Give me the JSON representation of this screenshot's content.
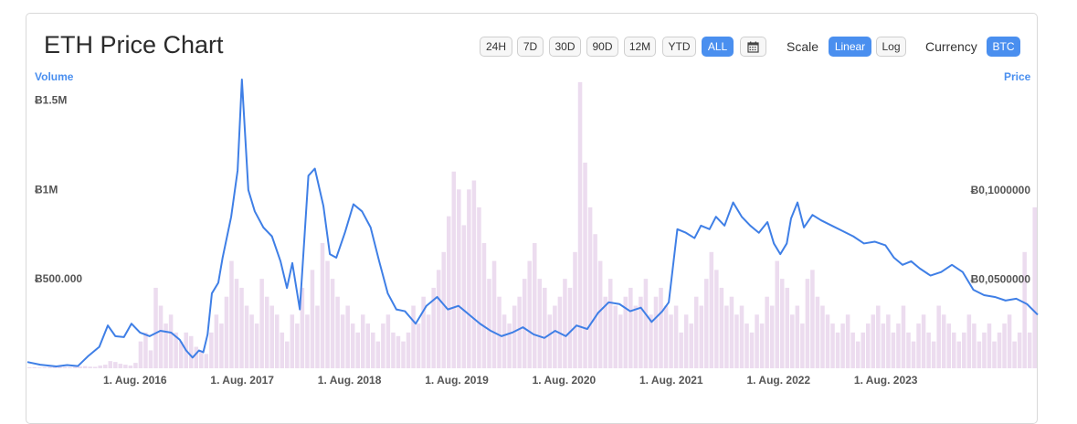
{
  "header": {
    "title": "ETH Price Chart"
  },
  "range_buttons": [
    {
      "label": "24H",
      "active": false
    },
    {
      "label": "7D",
      "active": false
    },
    {
      "label": "30D",
      "active": false
    },
    {
      "label": "90D",
      "active": false
    },
    {
      "label": "12M",
      "active": false
    },
    {
      "label": "YTD",
      "active": false
    },
    {
      "label": "ALL",
      "active": true
    }
  ],
  "calendar_icon": "calendar-icon",
  "scale": {
    "label": "Scale",
    "options": [
      {
        "label": "Linear",
        "active": true
      },
      {
        "label": "Log",
        "active": false
      }
    ]
  },
  "currency": {
    "label": "Currency",
    "value": "BTC"
  },
  "colors": {
    "accent": "#4a8fef",
    "price_line": "#3f7fe6",
    "volume_bar": "#ecdcef"
  },
  "chart_data": {
    "type": "line",
    "volume_axis_title": "Volume",
    "price_axis_title": "Price",
    "x_labels": [
      "1. Aug. 2016",
      "1. Aug. 2017",
      "1. Aug. 2018",
      "1. Aug. 2019",
      "1. Aug. 2020",
      "1. Aug. 2021",
      "1. Aug. 2022",
      "1. Aug. 2023"
    ],
    "x_range": [
      2015.58,
      2025.0
    ],
    "left_axis": {
      "name": "Volume",
      "ticks": [
        "Ƀ500.000",
        "Ƀ1M",
        "Ƀ1.5M"
      ],
      "tick_values": [
        500000,
        1000000,
        1500000
      ],
      "range": [
        0,
        1625000
      ]
    },
    "right_axis": {
      "name": "Price",
      "ticks": [
        "Ƀ0,0500000",
        "Ƀ0,1000000"
      ],
      "tick_values": [
        0.05,
        0.1
      ],
      "range": [
        0,
        0.163
      ]
    },
    "price_series": {
      "name": "Price",
      "points": [
        [
          2015.58,
          0.0035
        ],
        [
          2015.7,
          0.002
        ],
        [
          2015.85,
          0.001
        ],
        [
          2015.95,
          0.0018
        ],
        [
          2016.05,
          0.0012
        ],
        [
          2016.15,
          0.007
        ],
        [
          2016.25,
          0.012
        ],
        [
          2016.33,
          0.024
        ],
        [
          2016.4,
          0.018
        ],
        [
          2016.48,
          0.0175
        ],
        [
          2016.55,
          0.025
        ],
        [
          2016.63,
          0.02
        ],
        [
          2016.72,
          0.018
        ],
        [
          2016.82,
          0.021
        ],
        [
          2016.92,
          0.02
        ],
        [
          2017.0,
          0.016
        ],
        [
          2017.06,
          0.01
        ],
        [
          2017.12,
          0.006
        ],
        [
          2017.18,
          0.01
        ],
        [
          2017.22,
          0.009
        ],
        [
          2017.26,
          0.019
        ],
        [
          2017.3,
          0.042
        ],
        [
          2017.36,
          0.048
        ],
        [
          2017.4,
          0.062
        ],
        [
          2017.48,
          0.085
        ],
        [
          2017.54,
          0.111
        ],
        [
          2017.58,
          0.162
        ],
        [
          2017.64,
          0.1
        ],
        [
          2017.7,
          0.088
        ],
        [
          2017.78,
          0.079
        ],
        [
          2017.86,
          0.074
        ],
        [
          2017.94,
          0.06
        ],
        [
          2018.0,
          0.045
        ],
        [
          2018.05,
          0.059
        ],
        [
          2018.12,
          0.033
        ],
        [
          2018.2,
          0.108
        ],
        [
          2018.26,
          0.112
        ],
        [
          2018.34,
          0.091
        ],
        [
          2018.4,
          0.064
        ],
        [
          2018.46,
          0.062
        ],
        [
          2018.54,
          0.076
        ],
        [
          2018.62,
          0.092
        ],
        [
          2018.7,
          0.088
        ],
        [
          2018.78,
          0.079
        ],
        [
          2018.86,
          0.06
        ],
        [
          2018.94,
          0.042
        ],
        [
          2019.02,
          0.033
        ],
        [
          2019.1,
          0.032
        ],
        [
          2019.2,
          0.025
        ],
        [
          2019.3,
          0.035
        ],
        [
          2019.4,
          0.04
        ],
        [
          2019.5,
          0.033
        ],
        [
          2019.6,
          0.035
        ],
        [
          2019.7,
          0.03
        ],
        [
          2019.8,
          0.025
        ],
        [
          2019.9,
          0.021
        ],
        [
          2020.0,
          0.018
        ],
        [
          2020.1,
          0.02
        ],
        [
          2020.2,
          0.023
        ],
        [
          2020.3,
          0.019
        ],
        [
          2020.4,
          0.017
        ],
        [
          2020.5,
          0.021
        ],
        [
          2020.6,
          0.018
        ],
        [
          2020.7,
          0.024
        ],
        [
          2020.8,
          0.022
        ],
        [
          2020.9,
          0.031
        ],
        [
          2021.0,
          0.037
        ],
        [
          2021.1,
          0.036
        ],
        [
          2021.2,
          0.032
        ],
        [
          2021.3,
          0.034
        ],
        [
          2021.4,
          0.026
        ],
        [
          2021.5,
          0.032
        ],
        [
          2021.56,
          0.037
        ],
        [
          2021.64,
          0.078
        ],
        [
          2021.72,
          0.076
        ],
        [
          2021.8,
          0.073
        ],
        [
          2021.86,
          0.08
        ],
        [
          2021.94,
          0.078
        ],
        [
          2022.0,
          0.085
        ],
        [
          2022.08,
          0.08
        ],
        [
          2022.16,
          0.093
        ],
        [
          2022.24,
          0.085
        ],
        [
          2022.32,
          0.08
        ],
        [
          2022.4,
          0.076
        ],
        [
          2022.48,
          0.082
        ],
        [
          2022.54,
          0.07
        ],
        [
          2022.6,
          0.064
        ],
        [
          2022.66,
          0.07
        ],
        [
          2022.7,
          0.084
        ],
        [
          2022.76,
          0.093
        ],
        [
          2022.82,
          0.079
        ],
        [
          2022.9,
          0.086
        ],
        [
          2022.98,
          0.083
        ],
        [
          2023.08,
          0.08
        ],
        [
          2023.18,
          0.077
        ],
        [
          2023.28,
          0.074
        ],
        [
          2023.38,
          0.07
        ],
        [
          2023.48,
          0.071
        ],
        [
          2023.58,
          0.069
        ],
        [
          2023.66,
          0.062
        ],
        [
          2023.74,
          0.058
        ],
        [
          2023.82,
          0.06
        ],
        [
          2023.9,
          0.056
        ],
        [
          2024.0,
          0.052
        ],
        [
          2024.1,
          0.054
        ],
        [
          2024.2,
          0.058
        ],
        [
          2024.3,
          0.054
        ],
        [
          2024.4,
          0.044
        ],
        [
          2024.5,
          0.041
        ],
        [
          2024.6,
          0.04
        ],
        [
          2024.7,
          0.038
        ],
        [
          2024.8,
          0.039
        ],
        [
          2024.9,
          0.036
        ],
        [
          2025.0,
          0.03
        ]
      ]
    },
    "volume_series": {
      "name": "Volume",
      "bar_count": 200,
      "values": [
        5000,
        6000,
        4000,
        5000,
        7000,
        8000,
        9000,
        7000,
        6000,
        8000,
        10000,
        12000,
        9000,
        8000,
        15000,
        20000,
        40000,
        35000,
        25000,
        20000,
        15000,
        30000,
        150000,
        200000,
        100000,
        450000,
        350000,
        250000,
        300000,
        200000,
        150000,
        200000,
        180000,
        120000,
        100000,
        80000,
        200000,
        300000,
        250000,
        400000,
        600000,
        500000,
        450000,
        350000,
        300000,
        250000,
        500000,
        400000,
        350000,
        300000,
        200000,
        150000,
        300000,
        250000,
        450000,
        300000,
        550000,
        350000,
        700000,
        600000,
        500000,
        400000,
        300000,
        350000,
        250000,
        200000,
        300000,
        250000,
        200000,
        150000,
        250000,
        300000,
        200000,
        180000,
        150000,
        200000,
        350000,
        250000,
        400000,
        300000,
        450000,
        550000,
        650000,
        850000,
        1100000,
        1000000,
        800000,
        1000000,
        1050000,
        900000,
        700000,
        500000,
        600000,
        400000,
        300000,
        250000,
        350000,
        400000,
        500000,
        600000,
        700000,
        500000,
        450000,
        300000,
        350000,
        400000,
        500000,
        450000,
        650000,
        1600000,
        1150000,
        900000,
        750000,
        600000,
        400000,
        500000,
        350000,
        300000,
        400000,
        450000,
        350000,
        400000,
        500000,
        300000,
        400000,
        450000,
        350000,
        300000,
        350000,
        200000,
        300000,
        250000,
        400000,
        350000,
        500000,
        650000,
        550000,
        450000,
        350000,
        400000,
        300000,
        350000,
        250000,
        200000,
        300000,
        250000,
        400000,
        350000,
        600000,
        500000,
        450000,
        300000,
        350000,
        250000,
        500000,
        550000,
        400000,
        350000,
        300000,
        250000,
        200000,
        250000,
        300000,
        200000,
        150000,
        200000,
        250000,
        300000,
        350000,
        250000,
        300000,
        200000,
        250000,
        350000,
        200000,
        150000,
        250000,
        300000,
        200000,
        150000,
        350000,
        300000,
        250000,
        200000,
        150000,
        200000,
        300000,
        250000,
        150000,
        200000,
        250000,
        150000,
        200000,
        250000,
        300000,
        150000,
        200000,
        650000,
        200000,
        900000
      ]
    }
  }
}
